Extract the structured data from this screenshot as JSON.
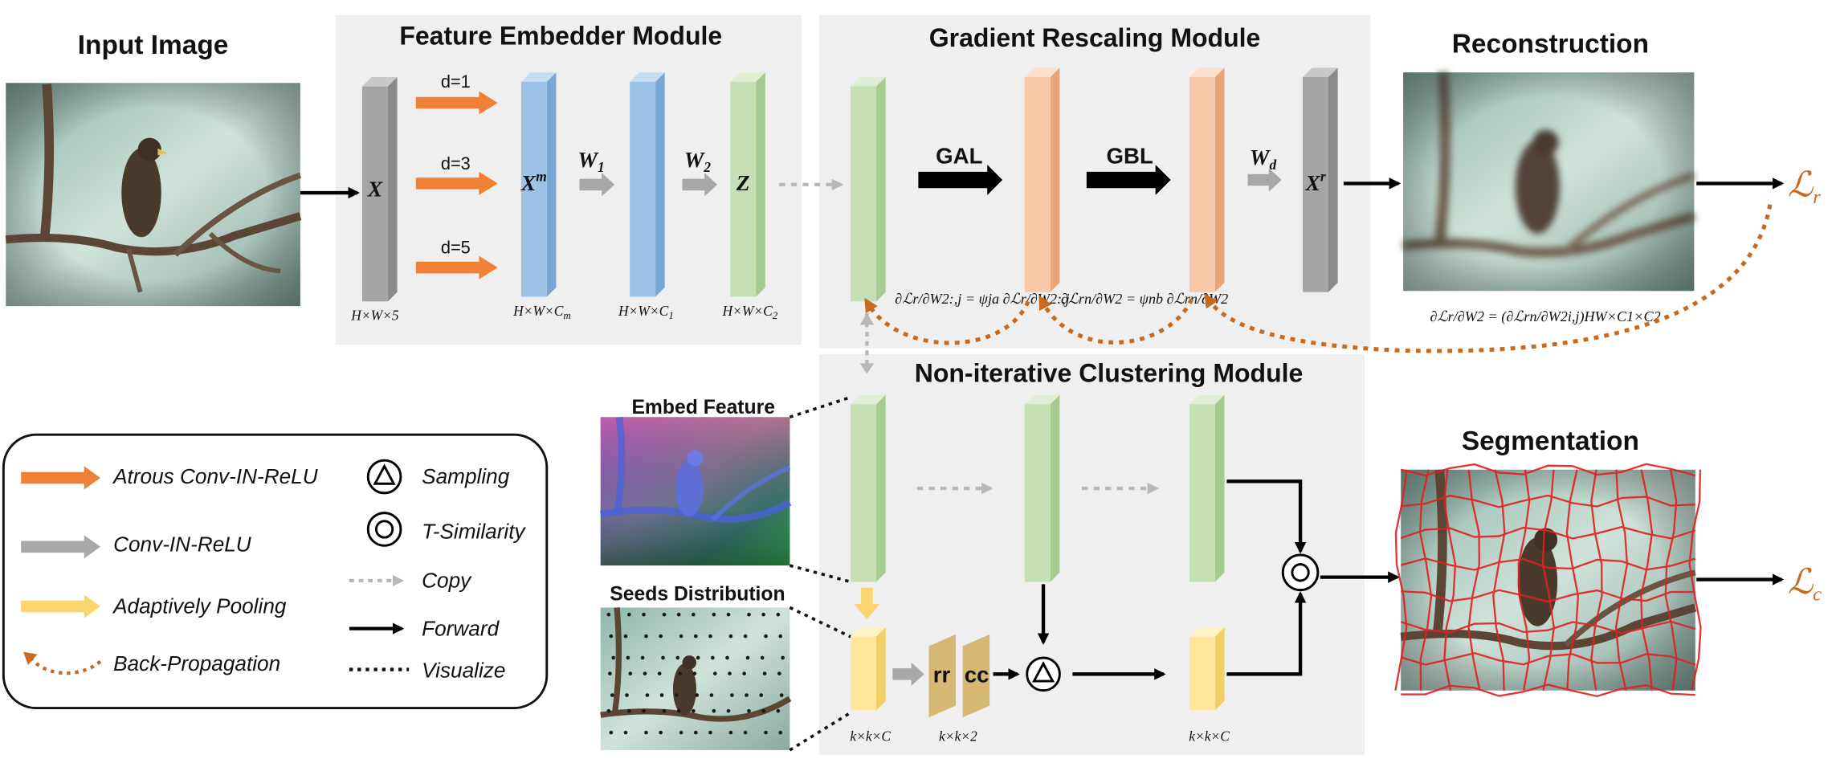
{
  "titles": {
    "input": "Input Image",
    "embedder": "Feature Embedder Module",
    "gradient": "Gradient Rescaling Module",
    "reconstruction": "Reconstruction",
    "clustering": "Non-iterative Clustering Module",
    "segmentation": "Segmentation"
  },
  "embedder": {
    "x_symbol": "X",
    "dilations": [
      "d=1",
      "d=3",
      "d=5"
    ],
    "xm_symbol": "X",
    "xm_sup": "m",
    "w1": "W",
    "w1_sub": "1",
    "w2": "W",
    "w2_sub": "2",
    "z_symbol": "Z",
    "dims": [
      "H×W×5",
      "H×W×C",
      "H×W×C",
      "H×W×C"
    ],
    "dim_subs": [
      "m",
      "1",
      "2"
    ]
  },
  "gradient": {
    "gal": "GAL",
    "gbl": "GBL",
    "wd": "W",
    "wd_sub": "d",
    "xr": "X",
    "xr_sup": "r",
    "eq1": "∂ℒr/∂W2:,j = ψja ∂ℒr/∂W2:,j",
    "eq2": "∂ℒrn/∂W2 = ψnb ∂ℒrn/∂W2",
    "eq3": "∂ℒr/∂W2 = (∂ℒrn/∂W2i,j)HW×C1×C2"
  },
  "losses": {
    "lr": "ℒ",
    "lr_sub": "r",
    "lc": "ℒ",
    "lc_sub": "c"
  },
  "clustering": {
    "embed_feature": "Embed Feature",
    "seeds_distribution": "Seeds Distribution",
    "rr": "rr",
    "cc": "cc",
    "dim_seeds": "k×k×C",
    "dim_rrcc": "k×k×2",
    "dim_out": "k×k×C"
  },
  "legend": {
    "atrous": "Atrous Conv-IN-ReLU",
    "conv": "Conv-IN-ReLU",
    "pool": "Adaptively Pooling",
    "backprop": "Back-Propagation",
    "sampling": "Sampling",
    "tsim": "T-Similarity",
    "copy": "Copy",
    "forward": "Forward",
    "visualize": "Visualize"
  },
  "colors": {
    "orange_arrow": "#f08036",
    "gray_arrow": "#a9a8a8",
    "yellow_arrow": "#fbd56e",
    "backprop": "#c8691e",
    "blue_block": "#9cc3e6",
    "green_block": "#c5e0b4",
    "salmon_block": "#f8c9a8",
    "gray_block": "#a5a5a5",
    "yellow_block": "#ffe699",
    "tan_block": "#d7b873",
    "module_bg": "#efefef"
  }
}
